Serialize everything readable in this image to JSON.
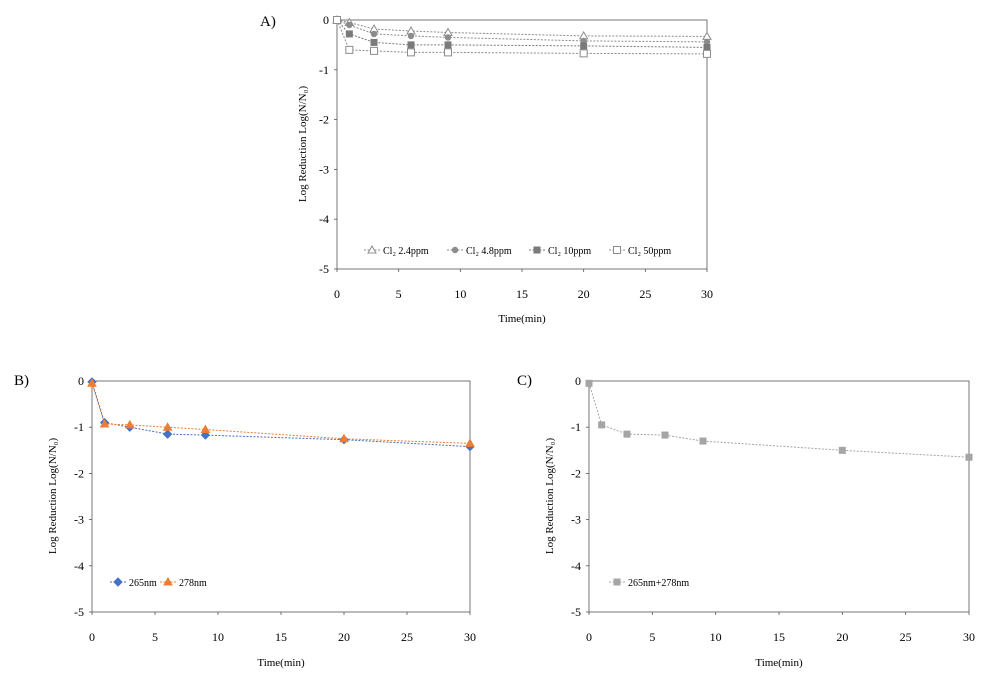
{
  "chart_data": [
    {
      "panel": "A)",
      "type": "line",
      "xlabel": "Time(min)",
      "ylabel": "Log Reduction Log(N/N₀)",
      "xlim": [
        0,
        30
      ],
      "ylim": [
        -5,
        0
      ],
      "xticks": [
        "0",
        "5",
        "10",
        "15",
        "20",
        "25",
        "30"
      ],
      "yticks": [
        "0",
        "-1",
        "-2",
        "-3",
        "-4",
        "-5"
      ],
      "grid": false,
      "legend_position": "bottom",
      "x": [
        0,
        1,
        3,
        6,
        9,
        20,
        30
      ],
      "series": [
        {
          "name": "Cl₂ 2.4ppm",
          "values": [
            0,
            -0.05,
            -0.18,
            -0.22,
            -0.25,
            -0.32,
            -0.33
          ],
          "marker": "open-triangle",
          "color": "#8c8c8c"
        },
        {
          "name": "Cl₂ 4.8ppm",
          "values": [
            0,
            -0.1,
            -0.28,
            -0.32,
            -0.35,
            -0.42,
            -0.44
          ],
          "marker": "circle",
          "color": "#8c8c8c"
        },
        {
          "name": "Cl₂ 10ppm",
          "values": [
            0,
            -0.28,
            -0.45,
            -0.5,
            -0.5,
            -0.52,
            -0.55
          ],
          "marker": "square",
          "color": "#7a7a7a"
        },
        {
          "name": "Cl₂ 50ppm",
          "values": [
            0,
            -0.6,
            -0.62,
            -0.65,
            -0.65,
            -0.67,
            -0.68
          ],
          "marker": "open-square",
          "color": "#8c8c8c"
        }
      ]
    },
    {
      "panel": "B)",
      "type": "line",
      "xlabel": "Time(min)",
      "ylabel": "Log Reduction Log(N/N₀)",
      "xlim": [
        0,
        30
      ],
      "ylim": [
        -5,
        0
      ],
      "xticks": [
        "0",
        "5",
        "10",
        "15",
        "20",
        "25",
        "30"
      ],
      "yticks": [
        "0",
        "-1",
        "-2",
        "-3",
        "-4",
        "-5"
      ],
      "grid": false,
      "legend_position": "bottom-left",
      "x": [
        0,
        1,
        3,
        6,
        9,
        20,
        30
      ],
      "series": [
        {
          "name": "265nm",
          "values": [
            -0.02,
            -0.9,
            -1.0,
            -1.15,
            -1.17,
            -1.27,
            -1.42
          ],
          "marker": "diamond",
          "color": "#4472c4"
        },
        {
          "name": "278nm",
          "values": [
            -0.05,
            -0.93,
            -0.95,
            -1.0,
            -1.05,
            -1.25,
            -1.35
          ],
          "marker": "triangle",
          "color": "#ed7d31"
        }
      ]
    },
    {
      "panel": "C)",
      "type": "line",
      "xlabel": "Time(min)",
      "ylabel": "Log Reduction Log(N/N₀)",
      "xlim": [
        0,
        30
      ],
      "ylim": [
        -5,
        0
      ],
      "xticks": [
        "0",
        "5",
        "10",
        "15",
        "20",
        "25",
        "30"
      ],
      "yticks": [
        "0",
        "-1",
        "-2",
        "-3",
        "-4",
        "-5"
      ],
      "grid": false,
      "legend_position": "bottom-left",
      "x": [
        0,
        1,
        3,
        6,
        9,
        20,
        30
      ],
      "series": [
        {
          "name": "265nm+278nm",
          "values": [
            -0.05,
            -0.95,
            -1.15,
            -1.17,
            -1.3,
            -1.5,
            -1.65
          ],
          "marker": "square",
          "color": "#a5a5a5"
        }
      ]
    }
  ]
}
